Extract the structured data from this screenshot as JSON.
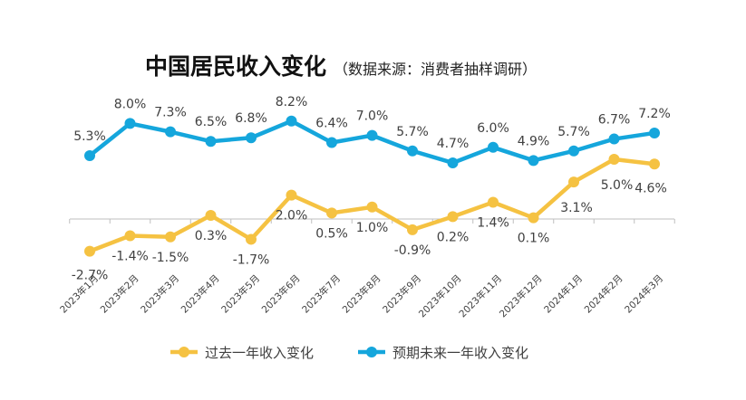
{
  "chart_data": {
    "type": "line",
    "title": "中国居民收入变化",
    "subtitle": "（数据来源：消费者抽样调研）",
    "categories": [
      "2023年1月",
      "2023年2月",
      "2023年3月",
      "2023年4月",
      "2023年5月",
      "2023年6月",
      "2023年7月",
      "2023年8月",
      "2023年9月",
      "2023年10月",
      "2023年11月",
      "2023年12月",
      "2024年1月",
      "2024年2月",
      "2024年3月"
    ],
    "series": [
      {
        "name": "过去一年收入变化",
        "color": "#F5C242",
        "values": [
          -2.7,
          -1.4,
          -1.5,
          0.3,
          -1.7,
          2.0,
          0.5,
          1.0,
          -0.9,
          0.2,
          1.4,
          0.1,
          3.1,
          5.0,
          4.6
        ],
        "labels": [
          "-2.7%",
          "-1.4%",
          "-1.5%",
          "0.3%",
          "-1.7%",
          "2.0%",
          "0.5%",
          "1.0%",
          "-0.9%",
          "0.2%",
          "1.4%",
          "0.1%",
          "3.1%",
          "5.0%",
          "4.6%"
        ]
      },
      {
        "name": "预期未来一年收入变化",
        "color": "#15A6DC",
        "values": [
          5.3,
          8.0,
          7.3,
          6.5,
          6.8,
          8.2,
          6.4,
          7.0,
          5.7,
          4.7,
          6.0,
          4.9,
          5.7,
          6.7,
          7.2
        ],
        "labels": [
          "5.3%",
          "8.0%",
          "7.3%",
          "6.5%",
          "6.8%",
          "8.2%",
          "6.4%",
          "7.0%",
          "5.7%",
          "4.7%",
          "6.0%",
          "4.9%",
          "5.7%",
          "6.7%",
          "7.2%"
        ]
      }
    ],
    "ylim": [
      -3.5,
      8.7
    ],
    "grid": false,
    "legend": "bottom"
  }
}
